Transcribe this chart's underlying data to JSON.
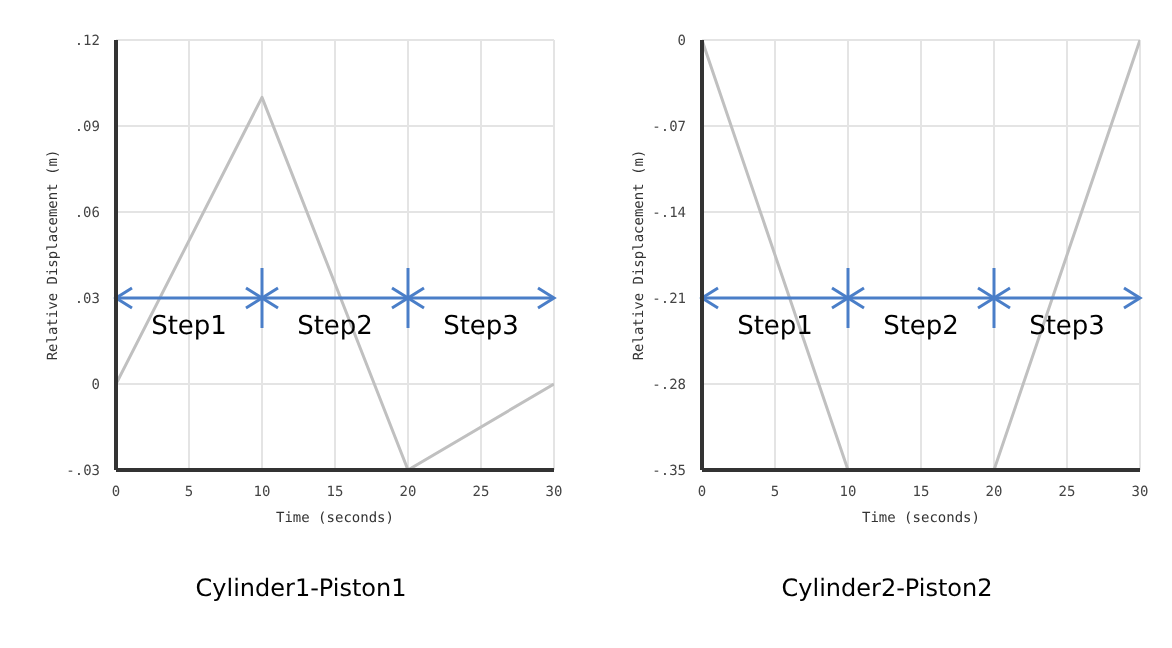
{
  "chart_data": [
    {
      "type": "line",
      "title": "Cylinder1-Piston1",
      "xlabel": "Time (seconds)",
      "ylabel": "Relative Displacement (m)",
      "x": [
        0,
        10,
        20,
        30
      ],
      "series": [
        {
          "color": "#c0c0c0",
          "values": [
            0,
            0.1,
            -0.03,
            0
          ]
        }
      ],
      "xlim": [
        0,
        30
      ],
      "xticks": [
        0,
        5,
        10,
        15,
        20,
        25,
        30
      ],
      "ylim": [
        -0.03,
        0.12
      ],
      "yticks": [
        {
          "value": -0.03,
          "label": "-.03"
        },
        0,
        {
          "value": 0.03,
          "label": ".03"
        },
        {
          "value": 0.06,
          "label": ".06"
        },
        {
          "value": 0.09,
          "label": ".09"
        },
        {
          "value": 0.12,
          "label": ".12"
        }
      ],
      "grid": true,
      "legend": false,
      "marker": "none",
      "annotations": [
        "Step1",
        "Step2",
        "Step3"
      ]
    },
    {
      "type": "line",
      "title": "Cylinder2-Piston2",
      "xlabel": "Time (seconds)",
      "ylabel": "Relative Displacement (m)",
      "x": [
        0,
        10,
        20,
        30
      ],
      "series": [
        {
          "color": "#c0c0c0",
          "values": [
            0,
            -0.35,
            -0.35,
            0
          ]
        }
      ],
      "xlim": [
        0,
        30
      ],
      "xticks": [
        0,
        5,
        10,
        15,
        20,
        25,
        30
      ],
      "ylim": [
        -0.35,
        0
      ],
      "yticks": [
        {
          "value": -0.35,
          "label": "-.35"
        },
        {
          "value": -0.28,
          "label": "-.28"
        },
        {
          "value": -0.21,
          "label": "-.21"
        },
        {
          "value": -0.14,
          "label": "-.14"
        },
        {
          "value": -0.07,
          "label": "-.07"
        },
        0
      ],
      "grid": true,
      "legend": false,
      "marker": "none",
      "annotations": [
        "Step1",
        "Step2",
        "Step3"
      ]
    }
  ]
}
